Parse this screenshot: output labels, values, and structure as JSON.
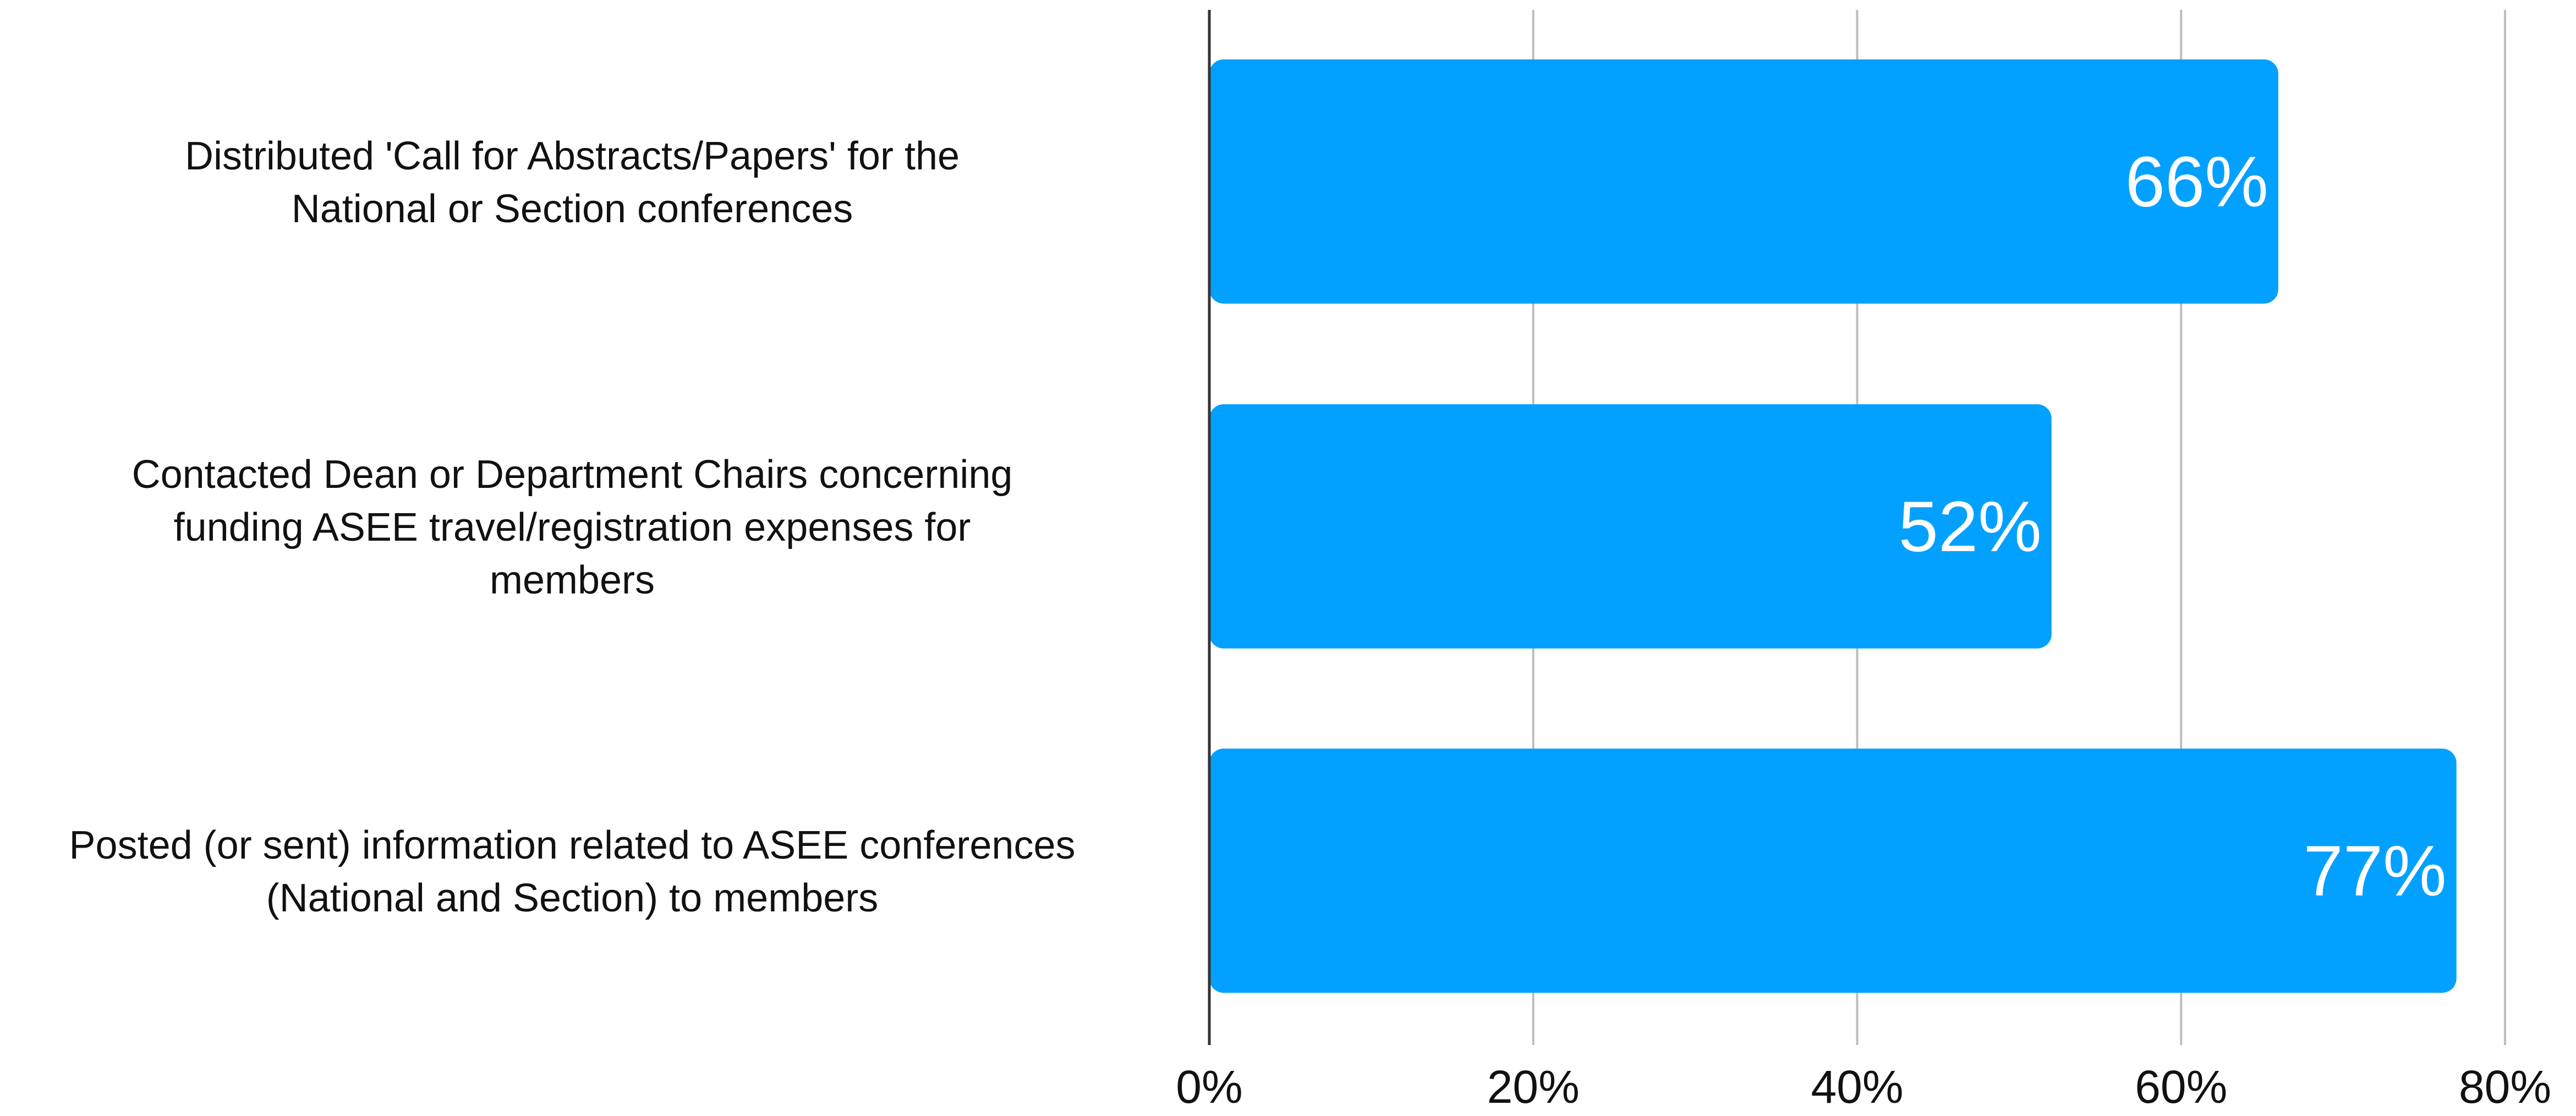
{
  "chart_data": {
    "type": "bar",
    "orientation": "horizontal",
    "title": "",
    "xlabel": "",
    "ylabel": "",
    "categories": [
      [
        "Distributed 'Call for Abstracts/Papers' for the",
        "National or Section conferences"
      ],
      [
        "Contacted Dean or Department Chairs concerning",
        "funding ASEE travel/registration expenses for",
        "members"
      ],
      [
        "Posted (or sent) information related to ASEE conferences",
        "(National and Section) to members"
      ]
    ],
    "values": [
      66,
      52,
      77
    ],
    "data_labels": [
      "66%",
      "52%",
      "77%"
    ],
    "xlim": [
      0,
      80
    ],
    "ticks": [
      0,
      20,
      40,
      60,
      80
    ],
    "tick_labels": [
      "0%",
      "20%",
      "40%",
      "60%",
      "80%"
    ],
    "grid": true,
    "legend": "none",
    "colors": {
      "bar": "#03a1ff",
      "data_label": "#ffffff"
    }
  }
}
